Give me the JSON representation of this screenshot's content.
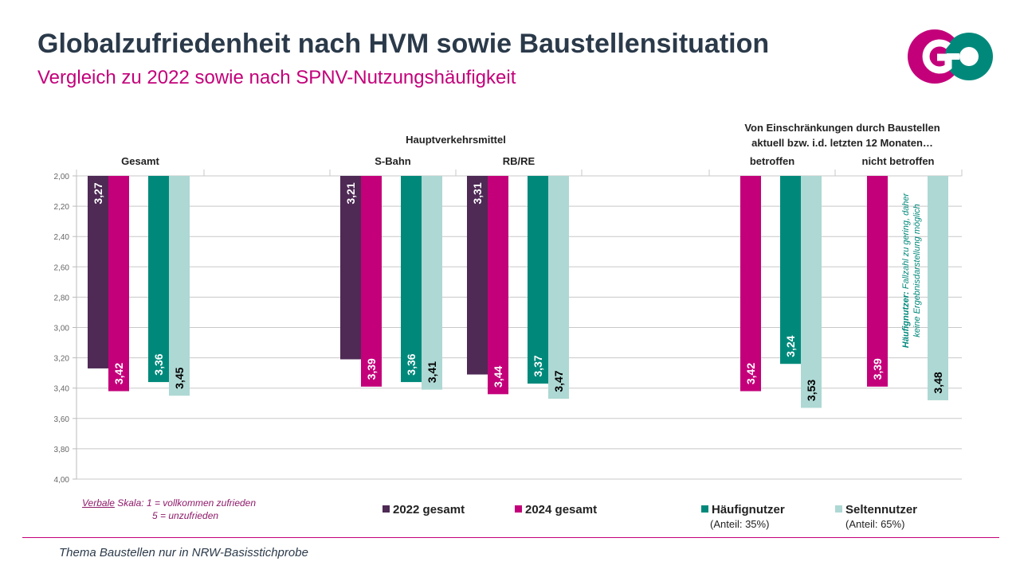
{
  "title": "Globalzufriedenheit nach HVM sowie Baustellensituation",
  "subtitle": "Vergleich zu 2022 sowie nach SPNV-Nutzungshäufigkeit",
  "logo_text": "GO",
  "footnote": "Thema Baustellen nur in NRW-Basisstichprobe",
  "scale_note": {
    "line1_underlined": "Verbale",
    "line1_rest": " Skala: 1 = vollkommen zufrieden",
    "line2": "5 = unzufrieden"
  },
  "legend": [
    {
      "label": "2022 gesamt",
      "color": "#4e2a55",
      "sub": ""
    },
    {
      "label": "2024 gesamt",
      "color": "#c3007a",
      "sub": ""
    },
    {
      "label": "Häufignutzer",
      "color": "#00897b",
      "sub": "(Anteil: 35%)"
    },
    {
      "label": "Seltennutzer",
      "color": "#aed8d4",
      "sub": "(Anteil: 65%)"
    }
  ],
  "chart_data": {
    "type": "bar",
    "orientation": "vertical, hanging from top (reversed axis)",
    "ylim": [
      2.0,
      4.0
    ],
    "y_ticks": [
      "2,00",
      "2,20",
      "2,40",
      "2,60",
      "2,80",
      "3,00",
      "3,20",
      "3,40",
      "3,60",
      "3,80",
      "4,00"
    ],
    "header_groups": [
      {
        "label": "Hauptverkehrsmittel",
        "spans": [
          "S-Bahn",
          "RB/RE"
        ]
      },
      {
        "label_lines": [
          "Von Einschränkungen durch Baustellen",
          "aktuell bzw. i.d. letzten 12 Monaten…"
        ],
        "spans": [
          "betroffen",
          "nicht betroffen"
        ]
      }
    ],
    "categories": [
      "Gesamt",
      "S-Bahn",
      "RB/RE",
      "betroffen",
      "nicht betroffen"
    ],
    "series": [
      {
        "name": "2022 gesamt",
        "color": "#4e2a55",
        "values": [
          3.27,
          3.21,
          3.31,
          null,
          null
        ]
      },
      {
        "name": "2024 gesamt",
        "color": "#c3007a",
        "values": [
          3.42,
          3.39,
          3.44,
          3.42,
          3.39
        ]
      },
      {
        "name": "Häufignutzer",
        "color": "#00897b",
        "values": [
          3.36,
          3.36,
          3.37,
          3.24,
          null
        ]
      },
      {
        "name": "Seltennutzer",
        "color": "#aed8d4",
        "values": [
          3.45,
          3.41,
          3.47,
          3.53,
          3.48
        ]
      }
    ],
    "value_labels": [
      [
        "3,27",
        "3,42",
        "3,36",
        "3,45"
      ],
      [
        "3,21",
        "3,39",
        "3,36",
        "3,41"
      ],
      [
        "3,31",
        "3,44",
        "3,37",
        "3,47"
      ],
      [
        null,
        "3,42",
        "3,24",
        "3,53"
      ],
      [
        null,
        "3,39",
        null,
        "3,48"
      ]
    ],
    "annotation_bold": "Häufignutzer:",
    "annotation_rest_1": " Fallzahl zu gering, daher",
    "annotation_rest_2": "keine Ergebnisdarstellung möglich"
  }
}
